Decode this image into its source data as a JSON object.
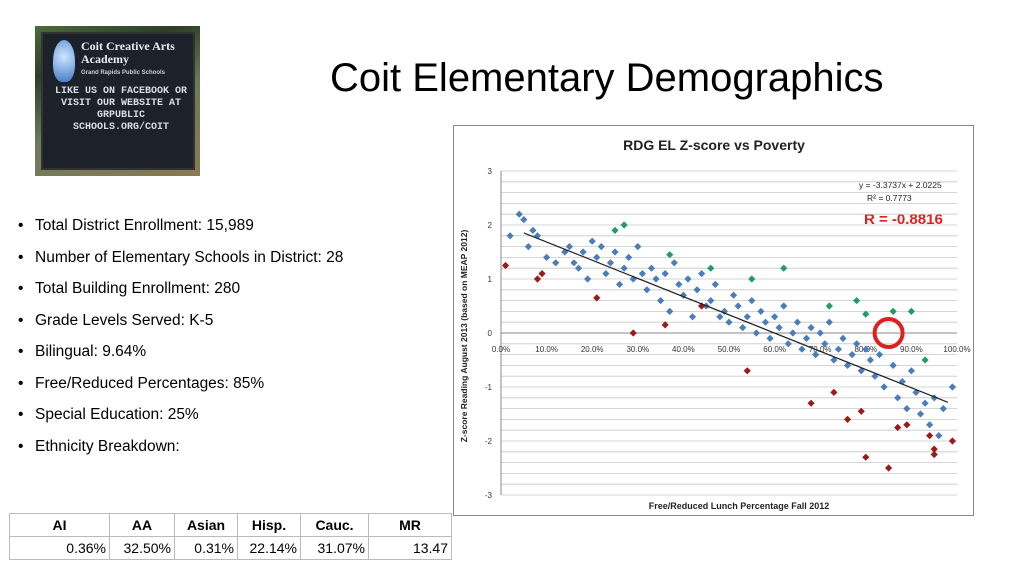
{
  "slide": {
    "title": "Coit Elementary Demographics"
  },
  "photo": {
    "sign_name": "Coit Creative Arts Academy",
    "sign_sub": "Grand Rapids Public Schools",
    "sign_message": "LIKE US ON FACEBOOK OR VISIT OUR WEBSITE AT GRPUBLIC SCHOOLS.ORG/COIT"
  },
  "facts": [
    "Total District Enrollment:  15,989",
    "Number of Elementary Schools in District:  28",
    "Total Building Enrollment:  280",
    "Grade Levels Served:  K-5",
    "Bilingual:  9.64%",
    "Free/Reduced Percentages:   85%",
    "Special Education:   25%",
    "Ethnicity Breakdown:"
  ],
  "ethnicity_table": {
    "headers": [
      "AI",
      "AA",
      "Asian",
      "Hisp.",
      "Cauc.",
      "MR"
    ],
    "values": [
      "0.36%",
      "32.50%",
      "0.31%",
      "22.14%",
      "31.07%",
      "13.47"
    ]
  },
  "colors": {
    "blue": "#4a7ebb",
    "green": "#1f9e64",
    "red": "#9b1b1b",
    "circle": "#e02020",
    "r_text": "#e02020"
  },
  "chart_data": {
    "type": "scatter",
    "title": "RDG EL Z-score vs Poverty",
    "xlabel": "Free/Reduced Lunch Percentage Fall 2012",
    "ylabel": "Z-score Reading August 2013 (based on MEAP 2012)",
    "xlim": [
      0,
      1
    ],
    "ylim": [
      -3,
      3
    ],
    "x_ticks": [
      "0.0%",
      "10.0%",
      "20.0%",
      "30.0%",
      "40.0%",
      "50.0%",
      "60.0%",
      "70.0%",
      "80.0%",
      "90.0%",
      "100.0%"
    ],
    "y_ticks": [
      "3",
      "2",
      "1",
      "0",
      "-1",
      "-2",
      "-3"
    ],
    "grid": true,
    "equation": "y = -3.3737x + 2.0225",
    "r_squared": "R² = 0.7773",
    "r_value": "R = -0.8816",
    "trendline": {
      "slope": -3.3737,
      "intercept": 2.0225,
      "x_range": [
        0.05,
        0.98
      ]
    },
    "highlight": {
      "x": 0.85,
      "y": 0.0
    },
    "series": [
      {
        "color_key": "blue",
        "points": [
          [
            0.02,
            1.8
          ],
          [
            0.04,
            2.2
          ],
          [
            0.05,
            2.1
          ],
          [
            0.06,
            1.6
          ],
          [
            0.07,
            1.9
          ],
          [
            0.08,
            1.8
          ],
          [
            0.1,
            1.4
          ],
          [
            0.12,
            1.3
          ],
          [
            0.14,
            1.5
          ],
          [
            0.15,
            1.6
          ],
          [
            0.16,
            1.3
          ],
          [
            0.17,
            1.2
          ],
          [
            0.18,
            1.5
          ],
          [
            0.19,
            1.0
          ],
          [
            0.2,
            1.7
          ],
          [
            0.21,
            1.4
          ],
          [
            0.22,
            1.6
          ],
          [
            0.23,
            1.1
          ],
          [
            0.24,
            1.3
          ],
          [
            0.25,
            1.5
          ],
          [
            0.26,
            0.9
          ],
          [
            0.27,
            1.2
          ],
          [
            0.28,
            1.4
          ],
          [
            0.29,
            1.0
          ],
          [
            0.3,
            1.6
          ],
          [
            0.31,
            1.1
          ],
          [
            0.32,
            0.8
          ],
          [
            0.33,
            1.2
          ],
          [
            0.34,
            1.0
          ],
          [
            0.35,
            0.6
          ],
          [
            0.36,
            1.1
          ],
          [
            0.37,
            0.4
          ],
          [
            0.38,
            1.3
          ],
          [
            0.39,
            0.9
          ],
          [
            0.4,
            0.7
          ],
          [
            0.41,
            1.0
          ],
          [
            0.42,
            0.3
          ],
          [
            0.43,
            0.8
          ],
          [
            0.44,
            1.1
          ],
          [
            0.45,
            0.5
          ],
          [
            0.46,
            0.6
          ],
          [
            0.47,
            0.9
          ],
          [
            0.48,
            0.3
          ],
          [
            0.49,
            0.4
          ],
          [
            0.5,
            0.2
          ],
          [
            0.51,
            0.7
          ],
          [
            0.52,
            0.5
          ],
          [
            0.53,
            0.1
          ],
          [
            0.54,
            0.3
          ],
          [
            0.55,
            0.6
          ],
          [
            0.56,
            0.0
          ],
          [
            0.57,
            0.4
          ],
          [
            0.58,
            0.2
          ],
          [
            0.59,
            -0.1
          ],
          [
            0.6,
            0.3
          ],
          [
            0.61,
            0.1
          ],
          [
            0.62,
            0.5
          ],
          [
            0.63,
            -0.2
          ],
          [
            0.64,
            0.0
          ],
          [
            0.65,
            0.2
          ],
          [
            0.66,
            -0.3
          ],
          [
            0.67,
            -0.1
          ],
          [
            0.68,
            0.1
          ],
          [
            0.69,
            -0.4
          ],
          [
            0.7,
            0.0
          ],
          [
            0.71,
            -0.2
          ],
          [
            0.72,
            0.2
          ],
          [
            0.73,
            -0.5
          ],
          [
            0.74,
            -0.3
          ],
          [
            0.75,
            -0.1
          ],
          [
            0.76,
            -0.6
          ],
          [
            0.77,
            -0.4
          ],
          [
            0.78,
            -0.2
          ],
          [
            0.79,
            -0.7
          ],
          [
            0.8,
            -0.3
          ],
          [
            0.81,
            -0.5
          ],
          [
            0.82,
            -0.8
          ],
          [
            0.83,
            -0.4
          ],
          [
            0.84,
            -1.0
          ],
          [
            0.86,
            -0.6
          ],
          [
            0.87,
            -1.2
          ],
          [
            0.88,
            -0.9
          ],
          [
            0.89,
            -1.4
          ],
          [
            0.9,
            -0.7
          ],
          [
            0.91,
            -1.1
          ],
          [
            0.92,
            -1.5
          ],
          [
            0.93,
            -1.3
          ],
          [
            0.94,
            -1.7
          ],
          [
            0.95,
            -1.2
          ],
          [
            0.96,
            -1.9
          ],
          [
            0.97,
            -1.4
          ],
          [
            0.99,
            -1.0
          ]
        ]
      },
      {
        "color_key": "green",
        "points": [
          [
            0.25,
            1.9
          ],
          [
            0.27,
            2.0
          ],
          [
            0.37,
            1.45
          ],
          [
            0.46,
            1.2
          ],
          [
            0.55,
            1.0
          ],
          [
            0.62,
            1.2
          ],
          [
            0.72,
            0.5
          ],
          [
            0.78,
            0.6
          ],
          [
            0.8,
            0.35
          ],
          [
            0.86,
            0.4
          ],
          [
            0.9,
            0.4
          ],
          [
            0.93,
            -0.5
          ]
        ]
      },
      {
        "color_key": "red",
        "points": [
          [
            0.01,
            1.25
          ],
          [
            0.09,
            1.1
          ],
          [
            0.08,
            1.0
          ],
          [
            0.21,
            0.65
          ],
          [
            0.29,
            0.0
          ],
          [
            0.36,
            0.15
          ],
          [
            0.44,
            0.5
          ],
          [
            0.54,
            -0.7
          ],
          [
            0.68,
            -1.3
          ],
          [
            0.73,
            -1.1
          ],
          [
            0.79,
            -1.45
          ],
          [
            0.8,
            -2.3
          ],
          [
            0.85,
            -2.5
          ],
          [
            0.87,
            -1.75
          ],
          [
            0.89,
            -1.7
          ],
          [
            0.94,
            -1.9
          ],
          [
            0.95,
            -2.15
          ],
          [
            0.95,
            -2.25
          ],
          [
            0.99,
            -2.0
          ],
          [
            0.76,
            -1.6
          ]
        ]
      }
    ]
  }
}
